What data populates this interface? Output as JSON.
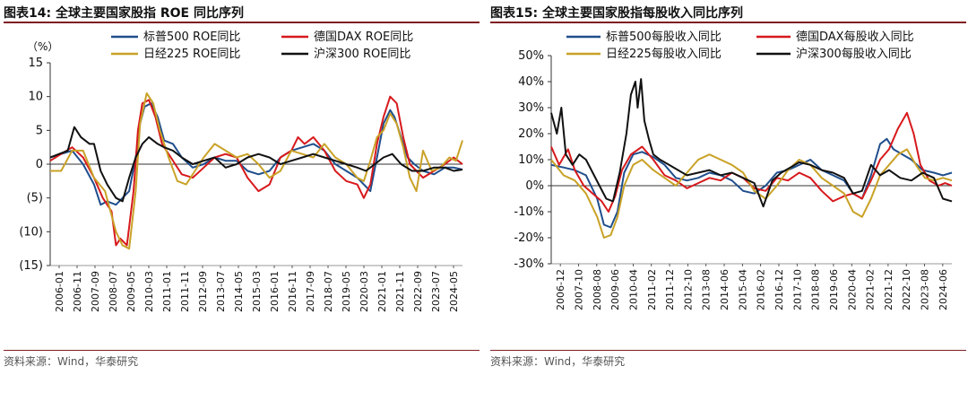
{
  "colors": {
    "blue": "#1f4e8c",
    "red": "#d7191c",
    "gold": "#c9a227",
    "black": "#111111",
    "title_rule": "#7f1d22"
  },
  "left": {
    "title": "图表14:  全球主要国家股指 ROE 同比序列",
    "source": "资料来源：Wind，华泰研究"
  },
  "right": {
    "title": "图表15:  全球主要国家股指每股收入同比序列",
    "source": "资料来源：Wind，华泰研究"
  },
  "chart_data": [
    {
      "type": "line",
      "unit_label": "（%）",
      "ylim": [
        -15,
        15
      ],
      "y_ticks": [
        15,
        10,
        5,
        0,
        -5,
        -10,
        -15
      ],
      "y_tick_labels": [
        "15",
        "10",
        "5",
        "0",
        "(5)",
        "(10)",
        "(15)"
      ],
      "x_range": [
        2006.0,
        2024.8
      ],
      "x_tick_labels": [
        "2006-01",
        "2006-11",
        "2007-09",
        "2008-07",
        "2009-05",
        "2010-03",
        "2011-01",
        "2011-11",
        "2012-09",
        "2013-07",
        "2014-05",
        "2015-03",
        "2016-01",
        "2016-11",
        "2017-09",
        "2018-07",
        "2019-05",
        "2020-03",
        "2021-01",
        "2021-11",
        "2022-09",
        "2023-07",
        "2024-05"
      ],
      "legend_position": "top",
      "grid": false,
      "series": [
        {
          "name": "标普500 ROE同比",
          "color": "#1f4e8c",
          "x": [
            2006.0,
            2006.5,
            2007.0,
            2007.5,
            2008.0,
            2008.3,
            2008.6,
            2009.0,
            2009.3,
            2009.6,
            2009.9,
            2010.1,
            2010.3,
            2010.6,
            2010.9,
            2011.2,
            2011.6,
            2012.0,
            2012.5,
            2013.0,
            2013.5,
            2014.0,
            2014.5,
            2015.0,
            2015.5,
            2016.0,
            2016.5,
            2017.0,
            2017.5,
            2018.0,
            2018.5,
            2019.0,
            2019.5,
            2020.0,
            2020.3,
            2020.6,
            2020.9,
            2021.2,
            2021.5,
            2021.7,
            2022.0,
            2022.3,
            2022.6,
            2023.0,
            2023.5,
            2024.0,
            2024.4,
            2024.8
          ],
          "y": [
            1,
            1.5,
            2,
            0,
            -3,
            -6,
            -5.5,
            -6,
            -5,
            -4,
            1,
            6,
            8.5,
            9,
            7,
            3.5,
            3,
            1,
            -0.5,
            0,
            1,
            0.5,
            0.5,
            -1,
            -1.5,
            -1,
            1,
            2,
            2.5,
            3,
            2,
            0,
            -1,
            -2,
            -3,
            -4,
            1,
            6,
            8,
            7,
            4,
            1,
            0,
            -1,
            -1.5,
            -0.5,
            -0.5,
            -0.8
          ]
        },
        {
          "name": "德国DAX ROE同比",
          "color": "#d7191c",
          "x": [
            2006.0,
            2006.5,
            2007.0,
            2007.5,
            2008.0,
            2008.4,
            2008.8,
            2009.0,
            2009.2,
            2009.5,
            2009.8,
            2010.0,
            2010.2,
            2010.5,
            2010.8,
            2011.1,
            2011.5,
            2012.0,
            2012.5,
            2013.0,
            2013.5,
            2014.0,
            2014.5,
            2015.0,
            2015.5,
            2016.0,
            2016.5,
            2017.0,
            2017.3,
            2017.6,
            2018.0,
            2018.5,
            2019.0,
            2019.5,
            2020.0,
            2020.3,
            2020.6,
            2020.9,
            2021.2,
            2021.5,
            2021.8,
            2022.1,
            2022.4,
            2022.7,
            2023.0,
            2023.5,
            2024.0,
            2024.4,
            2024.8
          ],
          "y": [
            0.5,
            1.5,
            2.5,
            1,
            -2,
            -5,
            -7,
            -12,
            -11,
            -12,
            -4,
            5,
            9,
            9.5,
            7,
            3,
            1,
            -1.5,
            -2,
            -0.5,
            1,
            1.5,
            1,
            -2,
            -4,
            -3,
            1,
            2,
            4,
            3,
            4,
            2,
            -1,
            -2.5,
            -3,
            -5,
            -3,
            3,
            7,
            10,
            9,
            4,
            0,
            -1,
            -2,
            -1,
            0,
            1,
            0
          ]
        },
        {
          "name": "日经225 ROE同比",
          "color": "#c9a227",
          "x": [
            2006.0,
            2006.5,
            2007.0,
            2007.5,
            2008.0,
            2008.5,
            2009.0,
            2009.3,
            2009.6,
            2009.9,
            2010.1,
            2010.4,
            2010.7,
            2011.0,
            2011.4,
            2011.8,
            2012.2,
            2012.6,
            2013.0,
            2013.5,
            2014.0,
            2014.5,
            2015.0,
            2015.5,
            2016.0,
            2016.5,
            2017.0,
            2017.5,
            2018.0,
            2018.5,
            2019.0,
            2019.5,
            2020.0,
            2020.3,
            2020.6,
            2020.9,
            2021.2,
            2021.5,
            2021.8,
            2022.1,
            2022.4,
            2022.7,
            2023.0,
            2023.4,
            2023.8,
            2024.2,
            2024.5,
            2024.8
          ],
          "y": [
            -1,
            -1,
            2,
            2,
            -2,
            -4,
            -10,
            -12,
            -12.5,
            -4,
            6,
            10.5,
            9,
            5,
            1,
            -2.5,
            -3,
            -1,
            1,
            3,
            2,
            1,
            1.5,
            0,
            -2,
            -1,
            2,
            1.5,
            1,
            3,
            1,
            0,
            -2,
            -2.5,
            0.5,
            4,
            5,
            7.5,
            6,
            2.5,
            -2,
            -4,
            2,
            -1,
            -0.5,
            1,
            0.5,
            3.5
          ]
        },
        {
          "name": "沪深300 ROE同比",
          "color": "#111111",
          "x": [
            2006.0,
            2006.4,
            2006.8,
            2007.1,
            2007.4,
            2007.8,
            2008.0,
            2008.3,
            2008.6,
            2009.0,
            2009.3,
            2009.6,
            2009.9,
            2010.2,
            2010.5,
            2010.9,
            2011.2,
            2011.6,
            2012.0,
            2012.5,
            2013.0,
            2013.5,
            2014.0,
            2014.5,
            2015.0,
            2015.5,
            2016.0,
            2016.5,
            2017.0,
            2017.5,
            2018.0,
            2018.5,
            2019.0,
            2019.5,
            2020.0,
            2020.4,
            2020.8,
            2021.2,
            2021.6,
            2022.0,
            2022.5,
            2023.0,
            2023.5,
            2024.0,
            2024.4,
            2024.8
          ],
          "y": [
            1,
            1.5,
            2,
            5.5,
            4,
            3,
            3,
            -1,
            -3,
            -5,
            -5.5,
            -2,
            1,
            3,
            4,
            3,
            2.5,
            2,
            1,
            0,
            0.5,
            1,
            -0.5,
            0,
            1,
            1.5,
            1,
            0,
            0.5,
            1,
            1.5,
            1,
            0.5,
            0,
            -0.5,
            -1,
            0,
            1,
            1.5,
            0,
            -1,
            -1,
            -0.5,
            -0.5,
            -1,
            -0.8
          ]
        }
      ]
    },
    {
      "type": "line",
      "ylim": [
        -30,
        50
      ],
      "y_ticks": [
        50,
        40,
        30,
        20,
        10,
        0,
        -10,
        -20,
        -30
      ],
      "y_tick_labels": [
        "50%",
        "40%",
        "30%",
        "20%",
        "10%",
        "0%",
        "-10%",
        "-20%",
        "-30%"
      ],
      "x_range": [
        2006.95,
        2024.8
      ],
      "x_tick_labels": [
        "2006-12",
        "2007-10",
        "2008-08",
        "2009-06",
        "2010-04",
        "2011-02",
        "2011-12",
        "2012-10",
        "2013-08",
        "2014-06",
        "2015-04",
        "2016-02",
        "2016-12",
        "2017-10",
        "2018-08",
        "2019-06",
        "2020-04",
        "2021-02",
        "2021-12",
        "2022-10",
        "2023-08",
        "2024-06"
      ],
      "legend_position": "top",
      "grid": false,
      "series": [
        {
          "name": "标普500每股收入同比",
          "color": "#1f4e8c",
          "x": [
            2006.95,
            2007.5,
            2008.0,
            2008.5,
            2009.0,
            2009.3,
            2009.6,
            2009.9,
            2010.2,
            2010.6,
            2011.0,
            2011.5,
            2012.0,
            2012.5,
            2013.0,
            2013.5,
            2014.0,
            2014.5,
            2015.0,
            2015.5,
            2016.0,
            2016.5,
            2017.0,
            2017.5,
            2018.0,
            2018.5,
            2019.0,
            2019.5,
            2020.0,
            2020.4,
            2020.8,
            2021.2,
            2021.6,
            2021.9,
            2022.2,
            2022.6,
            2023.0,
            2023.5,
            2024.0,
            2024.4,
            2024.8
          ],
          "y": [
            8,
            7,
            6,
            4,
            -5,
            -15,
            -16,
            -10,
            5,
            12,
            13,
            11,
            8,
            3,
            2,
            3,
            5,
            4,
            2,
            -2,
            -3,
            0,
            5,
            6,
            8,
            10,
            6,
            4,
            2,
            -3,
            -5,
            4,
            16,
            18,
            14,
            12,
            10,
            6,
            5,
            4,
            5
          ]
        },
        {
          "name": "德国DAX每股收入同比",
          "color": "#d7191c",
          "x": [
            2006.95,
            2007.3,
            2007.7,
            2008.0,
            2008.4,
            2008.8,
            2009.2,
            2009.5,
            2009.8,
            2010.1,
            2010.5,
            2011.0,
            2011.5,
            2012.0,
            2012.5,
            2013.0,
            2013.5,
            2014.0,
            2014.5,
            2015.0,
            2015.5,
            2016.0,
            2016.5,
            2017.0,
            2017.5,
            2018.0,
            2018.5,
            2019.0,
            2019.5,
            2020.0,
            2020.4,
            2020.8,
            2021.2,
            2021.6,
            2022.0,
            2022.4,
            2022.8,
            2023.1,
            2023.4,
            2023.8,
            2024.2,
            2024.5,
            2024.8
          ],
          "y": [
            15,
            8,
            14,
            6,
            0,
            -3,
            -6,
            -10,
            -4,
            6,
            12,
            15,
            10,
            4,
            2,
            -1,
            1,
            3,
            2,
            5,
            3,
            -1,
            -2,
            3,
            2,
            5,
            3,
            -2,
            -6,
            -4,
            -3,
            -5,
            2,
            10,
            14,
            22,
            28,
            20,
            8,
            2,
            0,
            1,
            0
          ]
        },
        {
          "name": "日经225每股收入同比",
          "color": "#c9a227",
          "x": [
            2006.95,
            2007.5,
            2008.0,
            2008.5,
            2009.0,
            2009.3,
            2009.6,
            2009.9,
            2010.2,
            2010.6,
            2011.0,
            2011.5,
            2012.0,
            2012.5,
            2013.0,
            2013.5,
            2014.0,
            2014.5,
            2015.0,
            2015.5,
            2016.0,
            2016.5,
            2017.0,
            2017.5,
            2018.0,
            2018.5,
            2019.0,
            2019.5,
            2020.0,
            2020.4,
            2020.8,
            2021.2,
            2021.6,
            2022.0,
            2022.4,
            2022.8,
            2023.2,
            2023.6,
            2024.0,
            2024.4,
            2024.8
          ],
          "y": [
            10,
            4,
            2,
            -3,
            -12,
            -20,
            -19,
            -12,
            0,
            8,
            10,
            6,
            3,
            0,
            5,
            10,
            12,
            10,
            8,
            5,
            -2,
            -5,
            0,
            6,
            10,
            8,
            3,
            0,
            -3,
            -10,
            -12,
            -5,
            4,
            8,
            12,
            14,
            8,
            3,
            2,
            3,
            2
          ]
        },
        {
          "name": "沪深300每股收入同比",
          "color": "#111111",
          "x": [
            2006.95,
            2007.2,
            2007.4,
            2007.6,
            2007.9,
            2008.2,
            2008.5,
            2008.8,
            2009.1,
            2009.4,
            2009.7,
            2010.0,
            2010.3,
            2010.5,
            2010.7,
            2010.8,
            2010.95,
            2011.1,
            2011.3,
            2011.5,
            2011.8,
            2012.2,
            2012.6,
            2013.0,
            2013.5,
            2014.0,
            2014.5,
            2015.0,
            2015.5,
            2016.0,
            2016.4,
            2016.8,
            2017.2,
            2017.6,
            2018.0,
            2018.5,
            2019.0,
            2019.5,
            2020.0,
            2020.4,
            2020.8,
            2021.2,
            2021.6,
            2022.0,
            2022.5,
            2023.0,
            2023.5,
            2024.0,
            2024.4,
            2024.8
          ],
          "y": [
            28,
            20,
            30,
            12,
            8,
            12,
            10,
            5,
            0,
            -5,
            -6,
            5,
            20,
            35,
            40,
            30,
            41,
            25,
            18,
            12,
            10,
            8,
            6,
            4,
            5,
            6,
            4,
            5,
            3,
            1,
            -8,
            2,
            5,
            7,
            9,
            8,
            6,
            5,
            3,
            -3,
            -2,
            8,
            4,
            6,
            3,
            2,
            5,
            3,
            -5,
            -6
          ]
        }
      ]
    }
  ]
}
